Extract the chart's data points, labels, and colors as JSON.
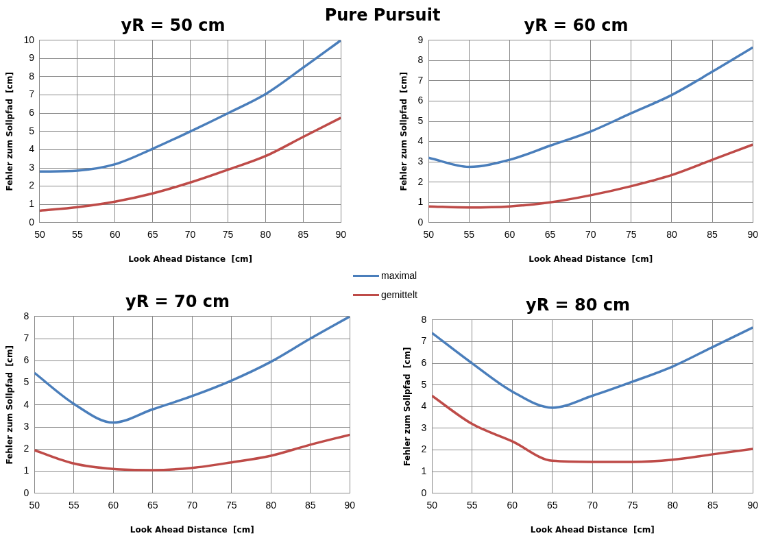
{
  "chart_data": [
    {
      "type": "line",
      "title": "yR = 50 cm",
      "annotations": [
        "Pure Pursuit"
      ],
      "xlabel": "Look Ahead Distance  [cm]",
      "ylabel": "Fehler zum Sollpfad  [cm]",
      "x": [
        50,
        55,
        60,
        65,
        70,
        75,
        80,
        85,
        90
      ],
      "xlim": [
        50,
        90
      ],
      "xticks": [
        50,
        55,
        60,
        65,
        70,
        75,
        80,
        85,
        90
      ],
      "ylim": [
        0,
        10
      ],
      "yticks": [
        0,
        1,
        2,
        3,
        4,
        5,
        6,
        7,
        8,
        9,
        10
      ],
      "grid": true,
      "legend": "right",
      "marker": "none",
      "series": [
        {
          "name": "maximal",
          "color": "#4a7ebb",
          "values": [
            2.8,
            2.85,
            3.2,
            4.05,
            5.0,
            6.0,
            7.05,
            8.5,
            10.0
          ]
        },
        {
          "name": "gemittelt",
          "color": "#be4b48",
          "values": [
            0.65,
            0.85,
            1.15,
            1.6,
            2.2,
            2.9,
            3.65,
            4.7,
            5.75
          ]
        }
      ]
    },
    {
      "type": "line",
      "title": "yR = 60 cm",
      "xlabel": "Look Ahead Distance  [cm]",
      "ylabel": "Fehler zum Sollpfad  [cm]",
      "x": [
        50,
        55,
        60,
        65,
        70,
        75,
        80,
        85,
        90
      ],
      "xlim": [
        50,
        90
      ],
      "xticks": [
        50,
        55,
        60,
        65,
        70,
        75,
        80,
        85,
        90
      ],
      "ylim": [
        0,
        9
      ],
      "yticks": [
        0,
        1,
        2,
        3,
        4,
        5,
        6,
        7,
        8,
        9
      ],
      "grid": true,
      "marker": "none",
      "series": [
        {
          "color": "#4a7ebb",
          "values": [
            3.2,
            2.75,
            3.1,
            3.8,
            4.5,
            5.4,
            6.3,
            7.45,
            8.65
          ]
        },
        {
          "color": "#be4b48",
          "values": [
            0.8,
            0.75,
            0.8,
            1.0,
            1.35,
            1.8,
            2.35,
            3.1,
            3.85
          ]
        }
      ]
    },
    {
      "type": "line",
      "title": "yR = 70 cm",
      "xlabel": "Look Ahead Distance  [cm]",
      "ylabel": "Fehler zum Sollpfad  [cm]",
      "x": [
        50,
        55,
        60,
        65,
        70,
        75,
        80,
        85,
        90
      ],
      "xlim": [
        50,
        90
      ],
      "xticks": [
        50,
        55,
        60,
        65,
        70,
        75,
        80,
        85,
        90
      ],
      "ylim": [
        0,
        8
      ],
      "yticks": [
        0,
        1,
        2,
        3,
        4,
        5,
        6,
        7,
        8
      ],
      "grid": true,
      "marker": "none",
      "series": [
        {
          "color": "#4a7ebb",
          "values": [
            5.45,
            4.05,
            3.2,
            3.8,
            4.4,
            5.1,
            5.95,
            7.0,
            8.0
          ]
        },
        {
          "color": "#be4b48",
          "values": [
            1.95,
            1.35,
            1.1,
            1.05,
            1.15,
            1.4,
            1.7,
            2.2,
            2.65
          ]
        }
      ]
    },
    {
      "type": "line",
      "title": "yR = 80 cm",
      "xlabel": "Look Ahead Distance  [cm]",
      "ylabel": "Fehler zum Sollpfad  [cm]",
      "x": [
        50,
        55,
        60,
        65,
        70,
        75,
        80,
        85,
        90
      ],
      "xlim": [
        50,
        90
      ],
      "xticks": [
        50,
        55,
        60,
        65,
        70,
        75,
        80,
        85,
        90
      ],
      "ylim": [
        0,
        8
      ],
      "yticks": [
        0,
        1,
        2,
        3,
        4,
        5,
        6,
        7,
        8
      ],
      "grid": true,
      "marker": "none",
      "series": [
        {
          "color": "#4a7ebb",
          "values": [
            7.4,
            6.0,
            4.7,
            3.95,
            4.5,
            5.15,
            5.85,
            6.75,
            7.65
          ]
        },
        {
          "color": "#be4b48",
          "values": [
            4.5,
            3.2,
            2.4,
            1.5,
            1.45,
            1.45,
            1.55,
            1.8,
            2.05
          ]
        }
      ]
    }
  ]
}
